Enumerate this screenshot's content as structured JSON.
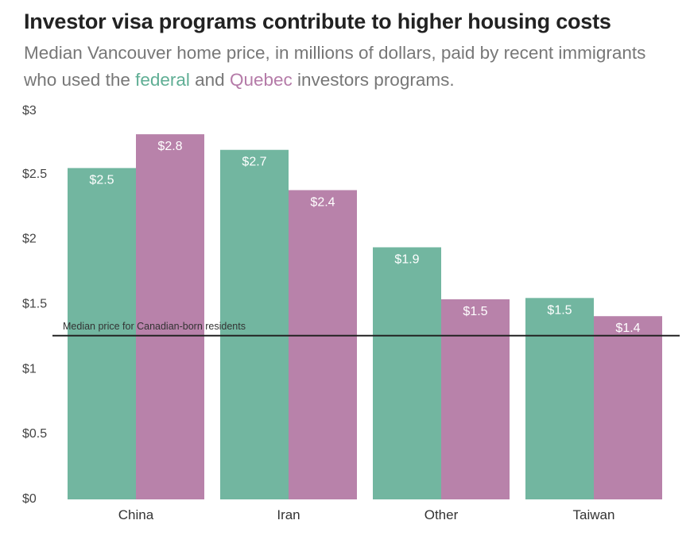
{
  "title": "Investor visa programs contribute to higher housing costs",
  "subtitle": {
    "part1": "Median Vancouver home price, in millions of dollars, paid by recent immigrants who used the ",
    "federal_word": "federal",
    "part2": " and ",
    "quebec_word": "Quebec",
    "part3": " investors programs."
  },
  "colors": {
    "federal": "#72b6a0",
    "quebec": "#b882aa",
    "reference_line": "#222222"
  },
  "chart_data": {
    "type": "bar",
    "categories": [
      "China",
      "Iran",
      "Other",
      "Taiwan"
    ],
    "series": [
      {
        "name": "federal",
        "values": [
          2.55,
          2.69,
          1.94,
          1.55
        ],
        "labels": [
          "$2.5",
          "$2.7",
          "$1.9",
          "$1.5"
        ]
      },
      {
        "name": "Quebec",
        "values": [
          2.81,
          2.38,
          1.54,
          1.41
        ],
        "labels": [
          "$2.8",
          "$2.4",
          "$1.5",
          "$1.4"
        ]
      }
    ],
    "ylim": [
      0,
      3
    ],
    "yticks": [
      0,
      0.5,
      1,
      1.5,
      2,
      2.5,
      3
    ],
    "ytick_labels": [
      "$0",
      "$0.5",
      "$1",
      "$1.5",
      "$2",
      "$2.5",
      "$3"
    ],
    "reference_line": {
      "value": 1.26,
      "label": "Median price for Canadian-born residents"
    },
    "grid": false,
    "legend": "none (series colors named in subtitle)"
  }
}
